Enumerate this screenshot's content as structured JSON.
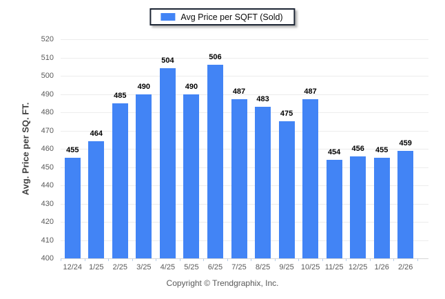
{
  "legend": {
    "swatch_color": "#4284f5",
    "label": "Avg Price per SQFT (Sold)"
  },
  "footer": {
    "copyright": "Copyright © Trendgraphix, Inc."
  },
  "chart_data": {
    "type": "bar",
    "title": "",
    "xlabel": "",
    "ylabel": "Avg. Price per SQ. FT.",
    "categories": [
      "12/24",
      "1/25",
      "2/25",
      "3/25",
      "4/25",
      "5/25",
      "6/25",
      "7/25",
      "8/25",
      "9/25",
      "10/25",
      "11/25",
      "12/25",
      "1/26",
      "2/26"
    ],
    "series": [
      {
        "name": "Avg Price per SQFT (Sold)",
        "color": "#4284f5",
        "values": [
          455,
          464,
          485,
          490,
          504,
          490,
          506,
          487,
          483,
          475,
          487,
          454,
          456,
          455,
          459
        ]
      }
    ],
    "ylim": [
      400,
      520
    ],
    "yticks": [
      400,
      410,
      420,
      430,
      440,
      450,
      460,
      470,
      480,
      490,
      500,
      510,
      520
    ],
    "grid": "horizontal",
    "legend_position": "top-center",
    "data_labels": true
  }
}
